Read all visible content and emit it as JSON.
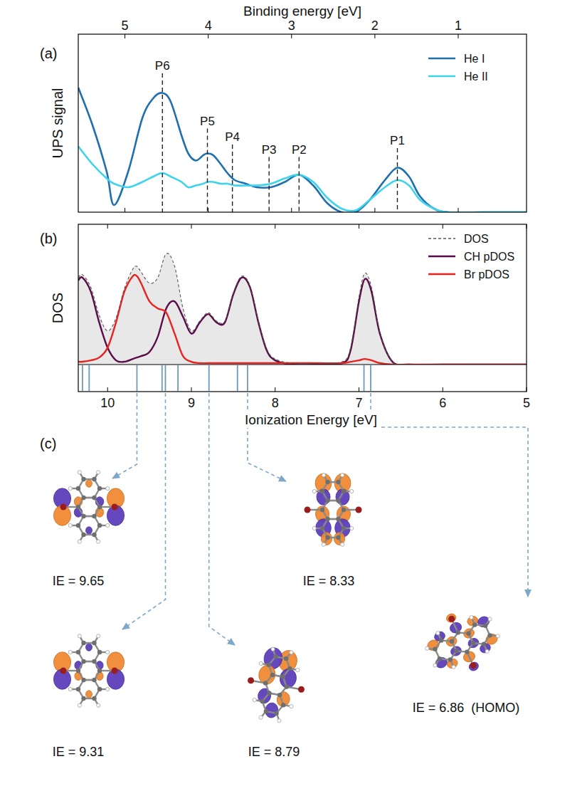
{
  "chart_data": [
    {
      "type": "line",
      "panel": "(a)",
      "x_label": "Binding energy [eV]",
      "y_label": "UPS signal",
      "x": [
        5.56,
        5.39,
        5.22,
        5.13,
        4.96,
        4.79,
        4.66,
        4.55,
        4.45,
        4.32,
        4.24,
        4.15,
        4.06,
        4.01,
        3.94,
        3.85,
        3.77,
        3.68,
        3.55,
        3.42,
        3.25,
        3.08,
        2.91,
        2.74,
        2.57,
        2.4,
        2.23,
        2.06,
        1.88,
        1.73,
        1.59,
        1.46,
        1.29,
        1.12,
        0.69,
        0.18
      ],
      "xlim": [
        5.56,
        0.18
      ],
      "xticks": [
        5,
        4,
        3,
        2,
        1
      ],
      "ylim": [
        0,
        1
      ],
      "tick_labels": "x",
      "legend": "upper right",
      "series": [
        {
          "name": "He I",
          "color": "#1d6fb0",
          "values": [
            0.7,
            0.49,
            0.23,
            0.04,
            0.23,
            0.53,
            0.64,
            0.67,
            0.62,
            0.43,
            0.33,
            0.29,
            0.32,
            0.33,
            0.32,
            0.27,
            0.22,
            0.18,
            0.16,
            0.14,
            0.14,
            0.17,
            0.21,
            0.15,
            0.05,
            0.0,
            0.0,
            0.07,
            0.18,
            0.25,
            0.2,
            0.09,
            0.02,
            0.0,
            0.0,
            0.0
          ]
        },
        {
          "name": "He II",
          "color": "#3dd3ec",
          "values": [
            0.37,
            0.27,
            0.19,
            0.16,
            0.14,
            0.17,
            0.2,
            0.22,
            0.2,
            0.17,
            0.14,
            0.15,
            0.16,
            0.17,
            0.17,
            0.16,
            0.16,
            0.15,
            0.15,
            0.15,
            0.16,
            0.19,
            0.21,
            0.17,
            0.08,
            0.02,
            0.01,
            0.07,
            0.14,
            0.18,
            0.15,
            0.07,
            0.02,
            0.0,
            0.0,
            0.0
          ]
        }
      ],
      "annotations": [
        {
          "label": "P1",
          "x": 1.73,
          "y": 0.36
        },
        {
          "label": "P2",
          "x": 2.91,
          "y": 0.31
        },
        {
          "label": "P3",
          "x": 3.27,
          "y": 0.31
        },
        {
          "label": "P4",
          "x": 3.71,
          "y": 0.38
        },
        {
          "label": "P5",
          "x": 4.01,
          "y": 0.47
        },
        {
          "label": "P6",
          "x": 4.55,
          "y": 0.78
        }
      ]
    },
    {
      "type": "line",
      "panel": "(b)",
      "x_label": "Ionization Energy [eV]",
      "y_label": "DOS",
      "x": [
        10.35,
        10.3,
        10.2,
        10.1,
        10.0,
        9.9,
        9.8,
        9.7,
        9.65,
        9.6,
        9.5,
        9.4,
        9.3,
        9.2,
        9.1,
        9.0,
        8.9,
        8.8,
        8.7,
        8.6,
        8.5,
        8.4,
        8.3,
        8.2,
        8.1,
        8.0,
        7.8,
        7.5,
        7.2,
        7.1,
        7.0,
        6.93,
        6.85,
        6.75,
        6.6,
        6.4,
        6.0,
        5.5,
        5.0
      ],
      "xlim": [
        10.35,
        5.0
      ],
      "xticks": [
        10,
        9,
        8,
        7,
        6,
        5
      ],
      "ylim": [
        0,
        1
      ],
      "tick_labels": "x",
      "legend": "upper right",
      "series": [
        {
          "name": "DOS",
          "type": "area",
          "color": "#555555",
          "line_style": "dashed",
          "values": [
            0.62,
            0.64,
            0.55,
            0.35,
            0.24,
            0.33,
            0.54,
            0.68,
            0.7,
            0.66,
            0.58,
            0.62,
            0.79,
            0.7,
            0.4,
            0.24,
            0.31,
            0.37,
            0.31,
            0.31,
            0.51,
            0.63,
            0.56,
            0.31,
            0.11,
            0.04,
            0.01,
            0.01,
            0.02,
            0.12,
            0.48,
            0.65,
            0.55,
            0.23,
            0.02,
            0.0,
            0.0,
            0.0,
            0.0
          ]
        },
        {
          "name": "CH pDOS",
          "type": "line",
          "color": "#5a0c48",
          "values": [
            0.6,
            0.62,
            0.52,
            0.3,
            0.12,
            0.03,
            0.02,
            0.04,
            0.05,
            0.06,
            0.09,
            0.2,
            0.4,
            0.45,
            0.34,
            0.22,
            0.3,
            0.36,
            0.3,
            0.3,
            0.5,
            0.62,
            0.55,
            0.3,
            0.1,
            0.03,
            0.0,
            0.0,
            0.01,
            0.1,
            0.45,
            0.61,
            0.52,
            0.22,
            0.02,
            0.0,
            0.0,
            0.0,
            0.0
          ]
        },
        {
          "name": "Br pDOS",
          "type": "line",
          "color": "#e8221e",
          "values": [
            0.02,
            0.02,
            0.03,
            0.05,
            0.12,
            0.3,
            0.52,
            0.63,
            0.63,
            0.58,
            0.45,
            0.4,
            0.37,
            0.22,
            0.06,
            0.02,
            0.01,
            0.01,
            0.01,
            0.01,
            0.01,
            0.01,
            0.01,
            0.01,
            0.01,
            0.01,
            0.01,
            0.01,
            0.01,
            0.02,
            0.03,
            0.04,
            0.03,
            0.01,
            0.0,
            0.0,
            0.0,
            0.0,
            0.0
          ]
        }
      ],
      "eigenvalues": [
        10.3,
        10.22,
        9.65,
        9.35,
        9.31,
        9.16,
        8.79,
        8.45,
        8.33,
        6.94,
        6.86
      ]
    }
  ],
  "orbitals": {
    "panel": "(c)",
    "items": [
      {
        "label": "IE = 9.65",
        "ie": 9.65
      },
      {
        "label": "IE = 9.31",
        "ie": 9.31
      },
      {
        "label": "IE = 8.79",
        "ie": 8.79
      },
      {
        "label": "IE = 8.33",
        "ie": 8.33
      },
      {
        "label": "IE = 6.86  (HOMO)",
        "ie": 6.86
      }
    ]
  }
}
